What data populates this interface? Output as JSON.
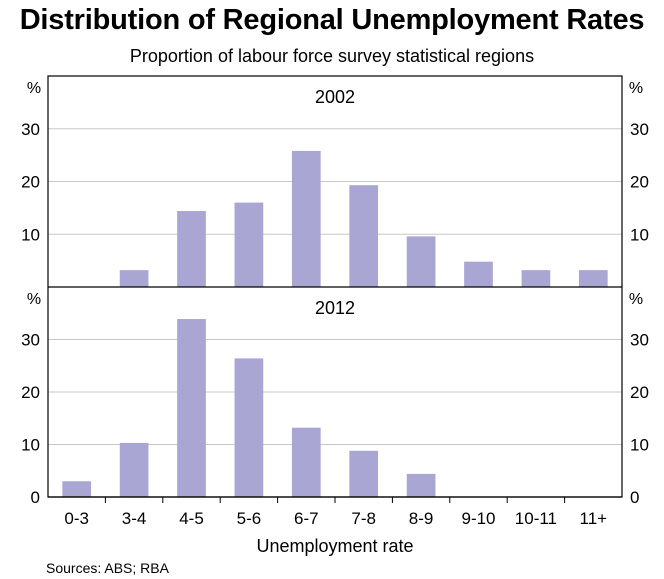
{
  "title": "Distribution of Regional Unemployment Rates",
  "subtitle": "Proportion of labour force survey statistical regions",
  "source": "Sources: ABS; RBA",
  "chart_data": {
    "type": "bar",
    "categories": [
      "0-3",
      "3-4",
      "4-5",
      "5-6",
      "6-7",
      "7-8",
      "8-9",
      "9-10",
      "10-11",
      "11+"
    ],
    "xlabel": "Unemployment rate",
    "unit": "%",
    "bar_color": "#a9a6d3",
    "panels": [
      {
        "label": "2002",
        "values": [
          0,
          3.2,
          14.4,
          16.0,
          25.8,
          19.3,
          9.6,
          4.8,
          3.2,
          3.2
        ],
        "ylim": [
          0,
          40
        ],
        "yticks": [
          "10",
          "20",
          "30"
        ]
      },
      {
        "label": "2012",
        "values": [
          3.0,
          10.3,
          33.9,
          26.4,
          13.2,
          8.8,
          4.4,
          0,
          0,
          0
        ],
        "ylim": [
          0,
          40
        ],
        "yticks": [
          "0",
          "10",
          "20",
          "30"
        ]
      }
    ],
    "grid": true
  }
}
